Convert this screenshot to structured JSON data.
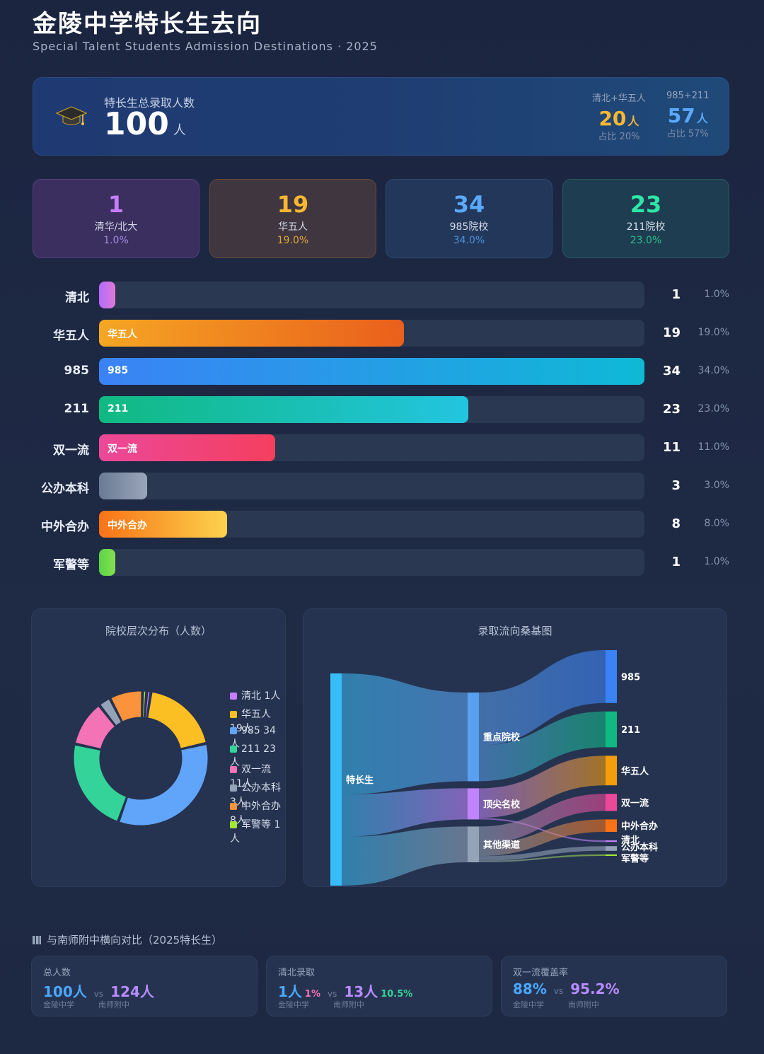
{
  "header": {
    "title": "金陵中学特长生去向",
    "subtitle": "Special Talent Students Admission Destinations · 2025"
  },
  "hero": {
    "label": "特长生总录取人数",
    "total": "100",
    "unit": "人",
    "stats": [
      {
        "label": "清北+华五人",
        "value": "20",
        "unit": "人",
        "sub": "占比 20%",
        "color": "#f7b731"
      },
      {
        "label": "985+211",
        "value": "57",
        "unit": "人",
        "sub": "占比 57%",
        "color": "#5aa9ff"
      }
    ]
  },
  "cards": [
    {
      "num": "1",
      "label": "清华/北大",
      "pct": "1.0%",
      "num_color": "#c77dff",
      "pct_color": "#a98ae0",
      "bg": "#3a2f5e",
      "border": "#54407e"
    },
    {
      "num": "19",
      "label": "华五人",
      "pct": "19.0%",
      "num_color": "#f7b731",
      "pct_color": "#e0a53a",
      "bg": "#3f3640",
      "border": "#6a4a34"
    },
    {
      "num": "34",
      "label": "985院校",
      "pct": "34.0%",
      "num_color": "#5aa9ff",
      "pct_color": "#4e90d8",
      "bg": "#22375a",
      "border": "#2d4a72"
    },
    {
      "num": "23",
      "label": "211院校",
      "pct": "23.0%",
      "num_color": "#2ee6a8",
      "pct_color": "#2cbf8f",
      "bg": "#1f3d50",
      "border": "#275a60"
    }
  ],
  "chart_data": [
    {
      "type": "bar",
      "orientation": "horizontal",
      "categories": [
        "清北",
        "华五人",
        "985",
        "211",
        "双一流",
        "公办本科",
        "中外合办",
        "军警等"
      ],
      "values": [
        1,
        19,
        34,
        23,
        11,
        3,
        8,
        1
      ],
      "percent_labels": [
        "1.0%",
        "19.0%",
        "34.0%",
        "23.0%",
        "11.0%",
        "3.0%",
        "8.0%",
        "1.0%"
      ],
      "inner_labels": [
        "",
        "华五人",
        "985",
        "211",
        "双一流",
        "",
        "中外合办",
        ""
      ],
      "colors": [
        [
          "#b36bff",
          "#e07ad6"
        ],
        [
          "#f5a623",
          "#ea5f1c"
        ],
        [
          "#3b82f6",
          "#0fb9d6"
        ],
        [
          "#10b981",
          "#22c5e0"
        ],
        [
          "#ec4899",
          "#f43f5e"
        ],
        [
          "#6b7a94",
          "#9aa6ba"
        ],
        [
          "#f97316",
          "#fcd34d"
        ],
        [
          "#5ad34a",
          "#86e04f"
        ]
      ],
      "xlim": [
        0,
        34
      ]
    },
    {
      "type": "pie",
      "donut": true,
      "title": "院校层次分布（人数）",
      "labels": [
        "清北",
        "华五人",
        "985",
        "211",
        "双一流",
        "公办本科",
        "中外合办",
        "军警等"
      ],
      "values": [
        1,
        19,
        34,
        23,
        11,
        3,
        8,
        1
      ],
      "legend_text": [
        "清北  1人",
        "华五人  19人",
        "985  34人",
        "211  23人",
        "双一流  11人",
        "公办本科  3人",
        "中外合办  8人",
        "军警等  1人"
      ],
      "colors": [
        "#c77dff",
        "#fbbf24",
        "#60a5fa",
        "#34d399",
        "#f472b6",
        "#94a3b8",
        "#fb923c",
        "#a3e635"
      ],
      "legend": "right"
    },
    {
      "type": "sankey",
      "title": "录取流向桑基图",
      "nodes": [
        {
          "name": "特长生",
          "color": "#38bdf8"
        },
        {
          "name": "重点院校",
          "color": "#5aa0f0"
        },
        {
          "name": "顶尖名校",
          "color": "#c084fc"
        },
        {
          "name": "其他渠道",
          "color": "#94a3b8"
        },
        {
          "name": "985",
          "color": "#3b82f6"
        },
        {
          "name": "211",
          "color": "#10b981"
        },
        {
          "name": "华五人",
          "color": "#f59e0b"
        },
        {
          "name": "双一流",
          "color": "#ec4899"
        },
        {
          "name": "中外合办",
          "color": "#f97316"
        },
        {
          "name": "清北",
          "color": "#c084fc"
        },
        {
          "name": "公办本科",
          "color": "#94a3b8"
        },
        {
          "name": "军警等",
          "color": "#a3e635"
        }
      ],
      "links": [
        {
          "source": "特长生",
          "target": "重点院校",
          "value": 57
        },
        {
          "source": "特长生",
          "target": "顶尖名校",
          "value": 20
        },
        {
          "source": "特长生",
          "target": "其他渠道",
          "value": 23
        },
        {
          "source": "重点院校",
          "target": "985",
          "value": 34
        },
        {
          "source": "重点院校",
          "target": "211",
          "value": 23
        },
        {
          "source": "顶尖名校",
          "target": "华五人",
          "value": 19
        },
        {
          "source": "顶尖名校",
          "target": "清北",
          "value": 1
        },
        {
          "source": "其他渠道",
          "target": "双一流",
          "value": 11
        },
        {
          "source": "其他渠道",
          "target": "中外合办",
          "value": 8
        },
        {
          "source": "其他渠道",
          "target": "公办本科",
          "value": 3
        },
        {
          "source": "其他渠道",
          "target": "军警等",
          "value": 1
        }
      ]
    }
  ],
  "comparison": {
    "title": "与南师附中横向对比（2025特长生）",
    "items": [
      {
        "label": "总人数",
        "v1": "100人",
        "v1_extra": "",
        "v2": "124人",
        "v2_extra": "",
        "n1": "金陵中学",
        "n2": "南师附中"
      },
      {
        "label": "清北录取",
        "v1": "1人",
        "v1_extra": "1%",
        "v2": "13人",
        "v2_extra": "10.5%",
        "n1": "金陵中学",
        "n2": "南师附中"
      },
      {
        "label": "双一流覆盖率",
        "v1": "88%",
        "v1_extra": "",
        "v2": "95.2%",
        "v2_extra": "",
        "n1": "金陵中学",
        "n2": "南师附中"
      }
    ],
    "vs": "vs"
  }
}
